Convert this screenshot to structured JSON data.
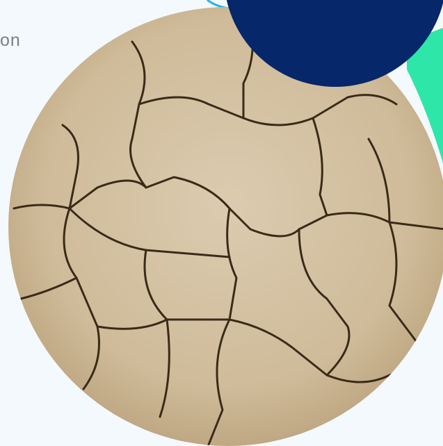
{
  "intro_text": "on"
}
